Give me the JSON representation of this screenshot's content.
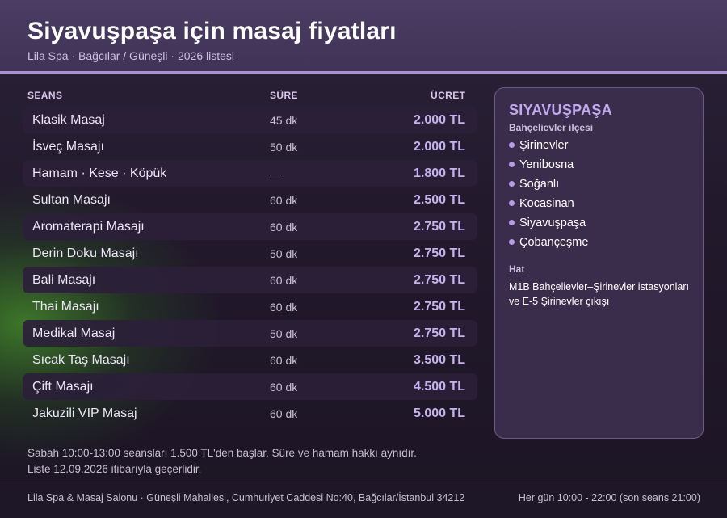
{
  "header": {
    "title": "Siyavuşpaşa için masaj fiyatları",
    "subtitle": "Lila Spa · Bağcılar / Güneşli · 2026 listesi"
  },
  "table": {
    "columns": {
      "session": "SEANS",
      "duration": "SÜRE",
      "price": "ÜCRET"
    },
    "rows": [
      {
        "name": "Klasik Masaj",
        "duration": "45 dk",
        "price": "2.000 TL"
      },
      {
        "name": "İsveç Masajı",
        "duration": "50 dk",
        "price": "2.000 TL"
      },
      {
        "name": "Hamam · Kese · Köpük",
        "duration": "—",
        "price": "1.800 TL"
      },
      {
        "name": "Sultan Masajı",
        "duration": "60 dk",
        "price": "2.500 TL"
      },
      {
        "name": "Aromaterapi Masajı",
        "duration": "60 dk",
        "price": "2.750 TL"
      },
      {
        "name": "Derin Doku Masajı",
        "duration": "50 dk",
        "price": "2.750 TL"
      },
      {
        "name": "Bali Masajı",
        "duration": "60 dk",
        "price": "2.750 TL"
      },
      {
        "name": "Thai Masajı",
        "duration": "60 dk",
        "price": "2.750 TL"
      },
      {
        "name": "Medikal Masaj",
        "duration": "50 dk",
        "price": "2.750 TL"
      },
      {
        "name": "Sıcak Taş Masajı",
        "duration": "60 dk",
        "price": "3.500 TL"
      },
      {
        "name": "Çift Masajı",
        "duration": "60 dk",
        "price": "4.500 TL"
      },
      {
        "name": "Jakuzili VIP Masaj",
        "duration": "60 dk",
        "price": "5.000 TL"
      }
    ]
  },
  "notes": {
    "line1": "Sabah 10:00-13:00 seansları 1.500 TL'den başlar. Süre ve hamam hakkı aynıdır.",
    "line2": "Liste 12.09.2026 itibarıyla geçerlidir."
  },
  "panel": {
    "title": "SIYAVUŞPAŞA",
    "subtitle": "Bahçelievler ilçesi",
    "neighborhoods": [
      "Şirinevler",
      "Yenibosna",
      "Soğanlı",
      "Kocasinan",
      "Siyavuşpaşa",
      "Çobançeşme"
    ],
    "hat_label": "Hat",
    "hat_text": "M1B Bahçelievler–Şirinevler istasyonları ve E-5 Şirinevler çıkışı"
  },
  "footer": {
    "address": "Lila Spa & Masaj Salonu · Güneşli Mahallesi, Cumhuriyet Caddesi No:40, Bağcılar/İstanbul 34212",
    "hours": "Her gün 10:00 - 22:00 (son seans 21:00)"
  },
  "colors": {
    "accent": "#a98fd6",
    "price": "#c6b2ee",
    "header_bg": "#4b3d63",
    "panel_bg": "#3a2d4b"
  }
}
